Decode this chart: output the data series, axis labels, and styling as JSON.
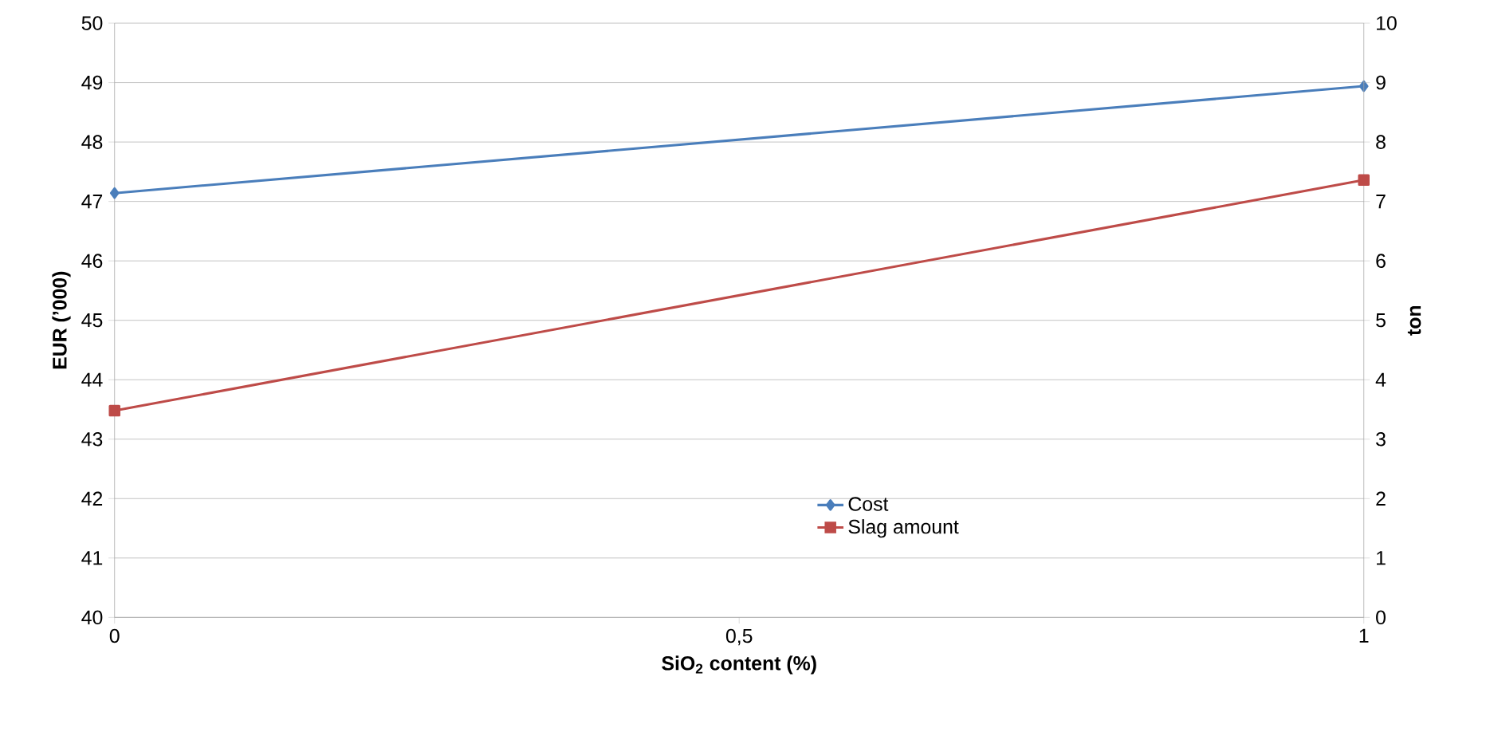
{
  "chart_data": {
    "type": "line",
    "xlabel": "SiO$_{2}$ content (%)",
    "ylabel": "EUR (’000)",
    "y2label": "ton",
    "x": [
      0,
      1
    ],
    "series": [
      {
        "name": "Cost",
        "color": "#4a7ebb",
        "values": [
          47.14,
          48.94
        ],
        "marker": "diamond"
      },
      {
        "name": "Slag amount",
        "color": "#be4b48",
        "values": [
          3.48,
          7.36
        ],
        "axis": "y2",
        "marker": "square"
      }
    ],
    "xlim": [
      0,
      1
    ],
    "xticks": [
      0,
      {
        "value": 0.5,
        "label": "0,5"
      },
      1
    ],
    "ylim": [
      40,
      50
    ],
    "yticks": [
      40,
      41,
      42,
      43,
      44,
      45,
      46,
      47,
      48,
      49,
      50
    ],
    "y2lim": [
      0,
      10
    ],
    "y2ticks": [
      0,
      1,
      2,
      3,
      4,
      5,
      6,
      7,
      8,
      9,
      10
    ],
    "grid": "y",
    "legend": "bottom",
    "line_style": "solid"
  }
}
